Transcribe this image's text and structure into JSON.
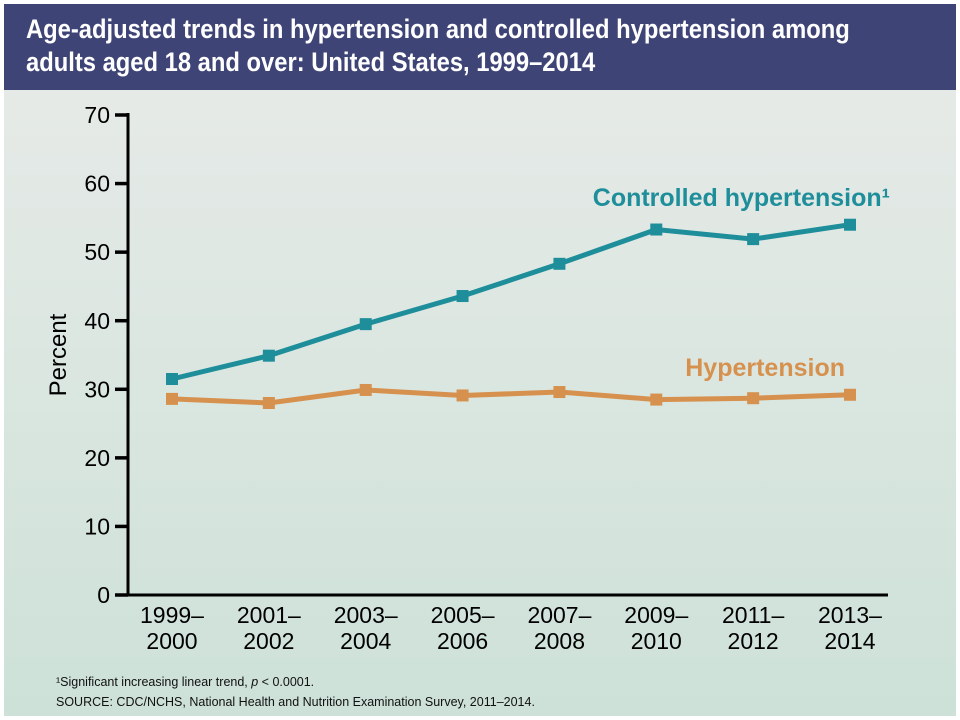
{
  "header": {
    "title_lines": [
      "Age-adjusted trends in hypertension and controlled hypertension among",
      "adults aged 18 and over: United States, 1999–2014"
    ],
    "bg_color": "#3f4477",
    "text_color": "#ffffff"
  },
  "chart_data": {
    "type": "line",
    "title": "Age-adjusted trends in hypertension and controlled hypertension among adults aged 18 and over: United States, 1999–2014",
    "xlabel": "",
    "ylabel": "Percent",
    "ylim": [
      0,
      70
    ],
    "yticks": [
      0,
      10,
      20,
      30,
      40,
      50,
      60,
      70
    ],
    "grid": false,
    "legend_position": "inline-labels",
    "categories": [
      "1999–2000",
      "2001–2002",
      "2003–2004",
      "2005–2006",
      "2007–2008",
      "2009–2010",
      "2011–2012",
      "2013–2014"
    ],
    "series": [
      {
        "name": "Controlled hypertension¹",
        "color": "#1f8e9b",
        "marker": "square",
        "values": [
          31.5,
          34.9,
          39.5,
          43.6,
          48.3,
          53.3,
          51.9,
          54.0
        ]
      },
      {
        "name": "Hypertension",
        "color": "#d6914e",
        "marker": "square",
        "values": [
          28.6,
          28.0,
          29.9,
          29.1,
          29.6,
          28.5,
          28.7,
          29.2
        ]
      }
    ]
  },
  "footnotes": {
    "note1": {
      "prefix": "¹Significant increasing linear trend, ",
      "p": "p",
      "suffix": " < 0.0001."
    },
    "source": "SOURCE: CDC/NCHS, National Health and Nutrition Examination Survey, 2011–2014."
  }
}
